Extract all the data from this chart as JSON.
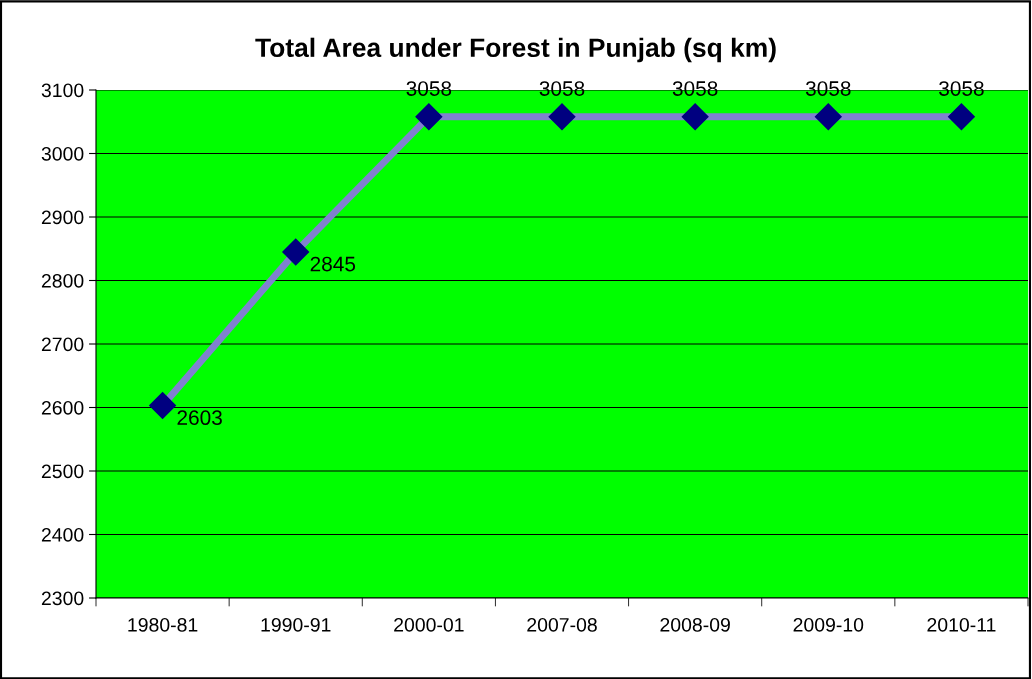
{
  "chart_data": {
    "type": "line",
    "title": "Total Area under Forest in Punjab (sq km)",
    "categories": [
      "1980-81",
      "1990-91",
      "2000-01",
      "2007-08",
      "2008-09",
      "2009-10",
      "2010-11"
    ],
    "series": [
      {
        "color": "#000080",
        "values": [
          2603,
          2845,
          3058,
          3058,
          3058,
          3058,
          3058
        ]
      }
    ],
    "ylim": [
      2300,
      3100
    ],
    "yticks": [
      2300,
      2400,
      2500,
      2600,
      2700,
      2800,
      2900,
      3000,
      3100
    ],
    "grid": "y",
    "marker": "diamond",
    "line_style": "solid",
    "data_labels": true
  }
}
